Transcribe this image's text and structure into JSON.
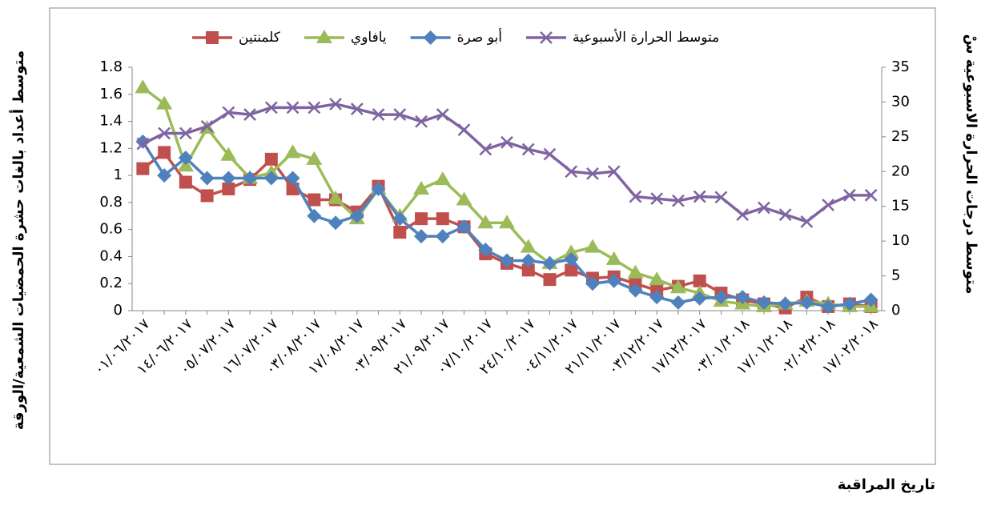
{
  "chart_data": {
    "type": "line",
    "y_label": "متوسط أعداد بالغات حشرة الحمضيات الشمعية/الورقة",
    "y2_label": "متوسط درجات الحرارة الاسبوعية سْ",
    "x_label": "تاريخ المراقبة",
    "categories": [
      "٠١/٠٦/٢٠١٧",
      null,
      "١٤/٠٦/٢٠١٧",
      null,
      "٠٥/٠٧/٢٠١٧",
      null,
      "١٦/٠٧/٢٠١٧",
      null,
      "٠٣/٠٨/٢٠١٧",
      null,
      "١٧/٠٨/٢٠١٧",
      null,
      "٠٣/٠٩/٢٠١٧",
      null,
      "٢١/٠٩/٢٠١٧",
      null,
      "٠٧/١٠/٢٠١٧",
      null,
      "٢٤/١٠/٢٠١٧",
      null,
      "٠٤/١١/٢٠١٧",
      null,
      "٢١/١١/٢٠١٧",
      null,
      "٠٣/١٢/٢٠١٧",
      null,
      "١٧/١٢/٢٠١٧",
      null,
      "٠٣/٠١/٢٠١٨",
      null,
      "١٧/٠١/٢٠١٨",
      null,
      "٠٢/٠٢/٢٠١٨",
      null,
      "١٧/٠٢/٢٠١٨"
    ],
    "ylim": [
      0,
      1.8
    ],
    "yticks": [
      0,
      0.2,
      0.4,
      0.6,
      0.8,
      1,
      1.2,
      1.4,
      1.6,
      1.8
    ],
    "y2lim": [
      0,
      35
    ],
    "y2ticks": [
      0,
      5,
      10,
      15,
      20,
      25,
      30,
      35
    ],
    "series": [
      {
        "name": "كلمنتين",
        "color": "#c0504d",
        "marker": "square",
        "values": [
          1.05,
          1.17,
          0.95,
          0.85,
          0.9,
          0.97,
          1.12,
          0.9,
          0.82,
          0.82,
          0.73,
          0.92,
          0.58,
          0.68,
          0.68,
          0.62,
          0.42,
          0.35,
          0.3,
          0.23,
          0.3,
          0.24,
          0.25,
          0.2,
          0.15,
          0.18,
          0.22,
          0.13,
          0.08,
          0.05,
          0.02,
          0.1,
          0.03,
          0.05,
          0.03
        ]
      },
      {
        "name": "يافاوي",
        "color": "#9bbb59",
        "marker": "triangle",
        "values": [
          1.65,
          1.53,
          1.07,
          1.35,
          1.15,
          0.98,
          1.02,
          1.17,
          1.12,
          0.83,
          0.68,
          0.9,
          0.7,
          0.9,
          0.97,
          0.82,
          0.65,
          0.65,
          0.47,
          0.35,
          0.43,
          0.47,
          0.38,
          0.28,
          0.23,
          0.17,
          0.13,
          0.07,
          0.05,
          0.03,
          0.05,
          0.07,
          0.05,
          0.03,
          0.03
        ]
      },
      {
        "name": "أبو صرة",
        "color": "#4f81bd",
        "marker": "diamond",
        "values": [
          1.25,
          1.0,
          1.13,
          0.98,
          0.98,
          0.98,
          0.98,
          0.98,
          0.7,
          0.65,
          0.7,
          0.9,
          0.68,
          0.55,
          0.55,
          0.62,
          0.45,
          0.37,
          0.37,
          0.35,
          0.38,
          0.2,
          0.22,
          0.15,
          0.1,
          0.06,
          0.09,
          0.1,
          0.1,
          0.06,
          0.05,
          0.06,
          0.03,
          0.05,
          0.08
        ]
      },
      {
        "name": "متوسط الحرارة الأسبوعية",
        "color": "#8064a2",
        "marker": "x",
        "axis": "y2",
        "values": [
          24,
          25.5,
          25.5,
          26.5,
          28.5,
          28.2,
          29.2,
          29.2,
          29.2,
          29.7,
          29,
          28.2,
          28.2,
          27.2,
          28.2,
          26,
          23.2,
          24.2,
          23.2,
          22.5,
          20,
          19.7,
          20,
          16.4,
          16.1,
          15.8,
          16.4,
          16.3,
          13.8,
          14.8,
          13.8,
          12.8,
          15.2,
          16.6,
          16.6
        ]
      }
    ]
  }
}
